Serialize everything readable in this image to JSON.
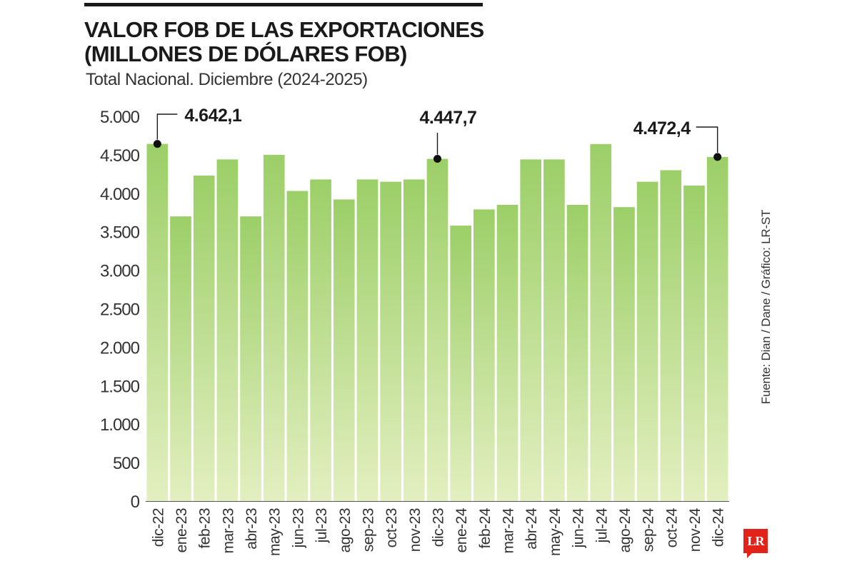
{
  "header": {
    "title": "VALOR FOB DE LAS EXPORTACIONES\n(MILLONES DE DÓLARES FOB)",
    "subtitle": "Total Nacional. Diciembre (2024-2025)"
  },
  "source": "Fuente: Dian / Dane / Gráfico: LR-ST",
  "logo": {
    "text": "LR"
  },
  "colors": {
    "bar_top": "#9ccf68",
    "bar_bottom": "#e3efc0",
    "text": "#1a1a1a",
    "logo": "#e2231a"
  },
  "chart_data": {
    "type": "bar",
    "categories": [
      "dic-22",
      "ene-23",
      "feb-23",
      "mar-23",
      "abr-23",
      "may-23",
      "jun-23",
      "jul-23",
      "ago-23",
      "sep-23",
      "oct-23",
      "nov-23",
      "dic-23",
      "ene-24",
      "feb-24",
      "mar-24",
      "abr-24",
      "may-24",
      "jun-24",
      "jul-24",
      "ago-24",
      "sep-24",
      "oct-24",
      "nov-24",
      "dic-24"
    ],
    "values": [
      4642.1,
      3700,
      4230,
      4440,
      3700,
      4500,
      4030,
      4180,
      3920,
      4180,
      4150,
      4180,
      4447.7,
      3580,
      3790,
      3850,
      4440,
      4440,
      3850,
      4640,
      3820,
      4150,
      4300,
      4100,
      4472.4
    ],
    "ylim": [
      0,
      5000
    ],
    "yticks": [
      0,
      500,
      1000,
      1500,
      2000,
      2500,
      3000,
      3500,
      4000,
      4500,
      5000
    ],
    "ytick_labels": [
      "0",
      "500",
      "1.000",
      "1.500",
      "2.000",
      "2.500",
      "3.000",
      "3.500",
      "4.000",
      "4.500",
      "5.000"
    ],
    "annotations": [
      {
        "category": "dic-22",
        "label": "4.642,1"
      },
      {
        "category": "dic-23",
        "label": "4.447,7"
      },
      {
        "category": "dic-24",
        "label": "4.472,4"
      }
    ],
    "grid": false,
    "legend": "none"
  }
}
